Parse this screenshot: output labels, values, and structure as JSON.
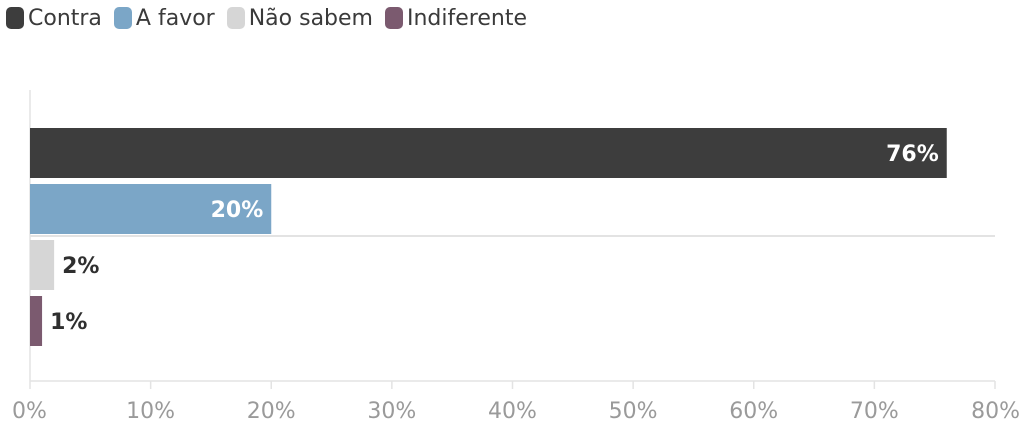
{
  "chart_data": {
    "type": "bar",
    "orientation": "horizontal",
    "categories": [
      "Contra",
      "A favor",
      "Não sabem",
      "Indiferente"
    ],
    "values": [
      76,
      20,
      2,
      1
    ],
    "value_labels": [
      "76%",
      "20%",
      "2%",
      "1%"
    ],
    "colors": [
      "#3d3d3d",
      "#7ba6c7",
      "#d6d6d6",
      "#7b5a6f"
    ],
    "xlim": [
      0,
      80
    ],
    "x_ticks": [
      0,
      10,
      20,
      30,
      40,
      50,
      60,
      70,
      80
    ],
    "x_tick_labels": [
      "0%",
      "10%",
      "20%",
      "30%",
      "40%",
      "50%",
      "60%",
      "70%",
      "80%"
    ],
    "legend_position": "top-left",
    "grid": false
  },
  "legend": [
    {
      "label": "Contra",
      "color": "#3d3d3d"
    },
    {
      "label": "A favor",
      "color": "#7ba6c7"
    },
    {
      "label": "Não sabem",
      "color": "#d6d6d6"
    },
    {
      "label": "Indiferente",
      "color": "#7b5a6f"
    }
  ]
}
